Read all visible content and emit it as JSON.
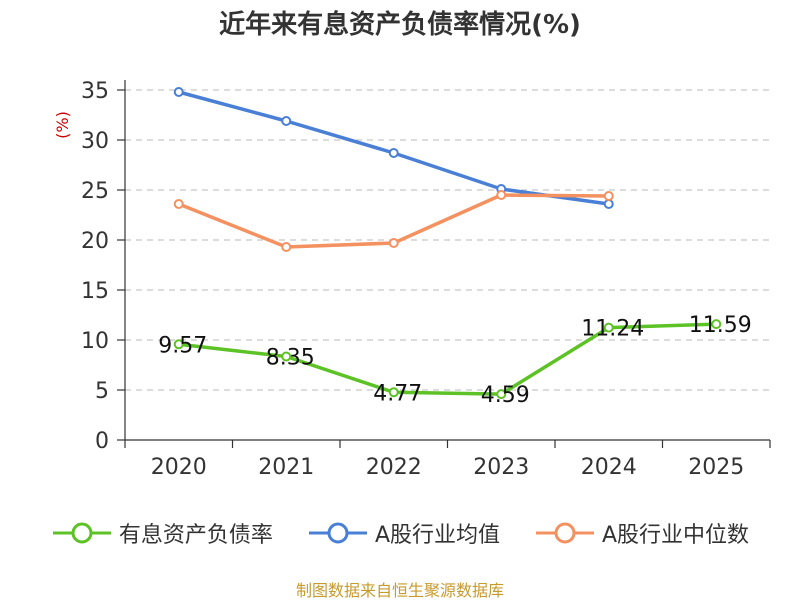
{
  "chart_data": {
    "type": "line",
    "title": "近年来有息资产负债率情况(%)",
    "ylabel": "(%)",
    "xlabel": "",
    "categories": [
      "2020",
      "2021",
      "2022",
      "2023",
      "2024",
      "2025"
    ],
    "ylim": [
      0,
      35
    ],
    "yticks": [
      0,
      5,
      10,
      15,
      20,
      25,
      30,
      35
    ],
    "grid": true,
    "legend_position": "bottom",
    "series": [
      {
        "name": "有息资产负债率",
        "color": "#5cc225",
        "values": [
          9.57,
          8.35,
          4.77,
          4.59,
          11.24,
          11.59
        ],
        "labels": [
          "9.57",
          "8.35",
          "4.77",
          "4.59",
          "11.24",
          "11.59"
        ]
      },
      {
        "name": "A股行业均值",
        "color": "#4a7fd6",
        "values": [
          34.8,
          31.9,
          28.7,
          25.1,
          23.6,
          null
        ]
      },
      {
        "name": "A股行业中位数",
        "color": "#f49160",
        "values": [
          23.6,
          19.3,
          19.7,
          24.5,
          24.4,
          null
        ]
      }
    ]
  },
  "source": "制图数据来自恒生聚源数据库"
}
